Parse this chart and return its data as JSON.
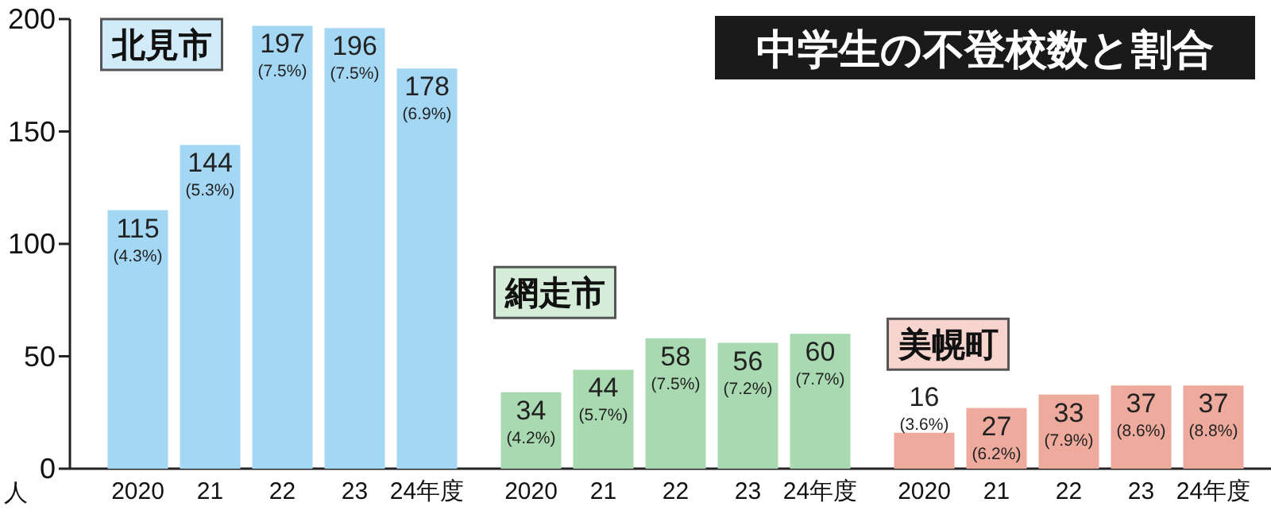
{
  "chart_data": {
    "type": "bar",
    "title": "中学生の不登校数と割合",
    "ylabel": "人",
    "categories": [
      "2020",
      "21",
      "22",
      "23",
      "24年度",
      "2020",
      "21",
      "22",
      "23",
      "24年度",
      "2020",
      "21",
      "22",
      "23",
      "24年度"
    ],
    "series": [
      {
        "name": "北見市",
        "color": "#a3d7f3",
        "values": [
          115,
          144,
          197,
          196,
          178,
          null,
          null,
          null,
          null,
          null,
          null,
          null,
          null,
          null,
          null
        ],
        "value_labels": [
          "115\n(4.3%)",
          "144\n(5.3%)",
          "197\n(7.5%)",
          "196\n(7.5%)",
          "178\n(6.9%)",
          null,
          null,
          null,
          null,
          null,
          null,
          null,
          null,
          null,
          null
        ]
      },
      {
        "name": "網走市",
        "color": "#a9d9b0",
        "values": [
          null,
          null,
          null,
          null,
          null,
          34,
          44,
          58,
          56,
          60,
          null,
          null,
          null,
          null,
          null
        ],
        "value_labels": [
          null,
          null,
          null,
          null,
          null,
          "34\n(4.2%)",
          "44\n(5.7%)",
          "58\n(7.5%)",
          "56\n(7.2%)",
          "60\n(7.7%)",
          null,
          null,
          null,
          null,
          null
        ]
      },
      {
        "name": "美幌町",
        "color": "#eeaa9c",
        "values": [
          null,
          null,
          null,
          null,
          null,
          null,
          null,
          null,
          null,
          null,
          16,
          27,
          33,
          37,
          37
        ],
        "value_labels": [
          null,
          null,
          null,
          null,
          null,
          null,
          null,
          null,
          null,
          null,
          "16\n(3.6%)",
          "27\n(6.2%)",
          "33\n(7.9%)",
          "37\n(8.6%)",
          "37\n(8.8%)"
        ]
      }
    ],
    "ylim": [
      0,
      200
    ],
    "yticks": [
      0,
      50,
      100,
      150,
      200
    ],
    "grid": false,
    "legend": false
  }
}
